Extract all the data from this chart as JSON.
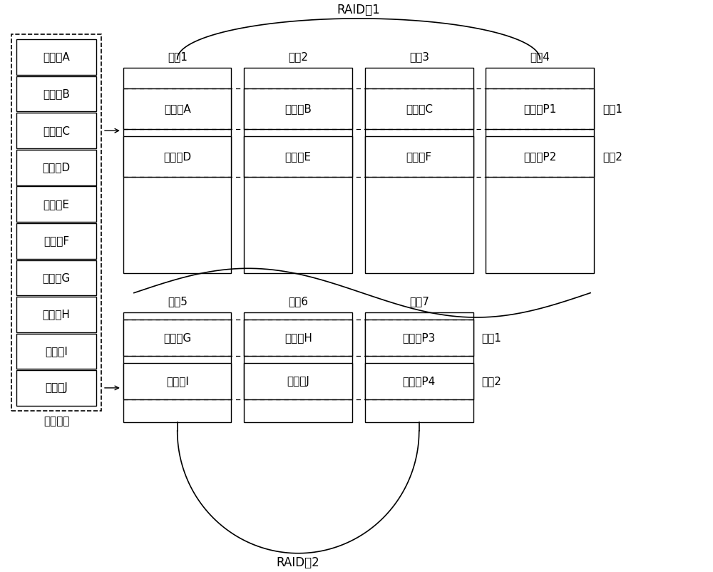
{
  "title": "RAID组1",
  "title2": "RAID组2",
  "logical_disk_label": "逻辑磁盘",
  "logical_blocks": [
    "数据块A",
    "数据块B",
    "数据块C",
    "数据块D",
    "数据块E",
    "数据块F",
    "数据块G",
    "数据块H",
    "数据块I",
    "数据块J"
  ],
  "raid1_disks": [
    "磁盘1",
    "磁盘2",
    "磁盘3",
    "磁盘4"
  ],
  "raid2_disks": [
    "磁盘5",
    "磁盘6",
    "磁盘7"
  ],
  "raid1_stripe1": [
    "数据块A",
    "数据块B",
    "数据块C",
    "校验位P1"
  ],
  "raid1_stripe2": [
    "数据块D",
    "数据块E",
    "数据块F",
    "校验位P2"
  ],
  "raid2_stripe1": [
    "数据块G",
    "数据块H",
    "校验位P3"
  ],
  "raid2_stripe2": [
    "数据块I",
    "数据块J",
    "校验位P4"
  ],
  "stripe1_label": "条刷1",
  "stripe2_label": "条刷2",
  "bg_color": "#ffffff",
  "font_size": 11,
  "title_font_size": 12
}
